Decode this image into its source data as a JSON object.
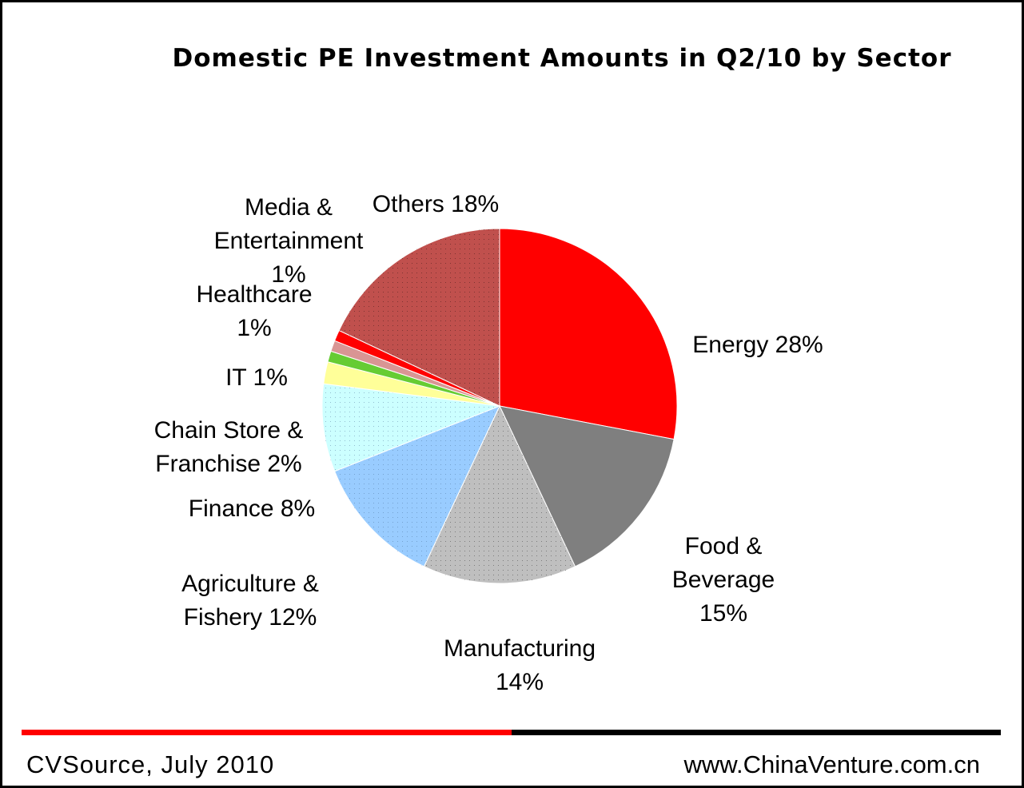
{
  "chart_data": {
    "type": "pie",
    "title": "Domestic PE Investment Amounts in Q2/10 by Sector",
    "slices": [
      {
        "name": "Energy",
        "value": 28,
        "label_lines": [
          "Energy 28%"
        ],
        "color": "#ff0000"
      },
      {
        "name": "Food & Beverage",
        "value": 15,
        "label_lines": [
          "Food &",
          "Beverage",
          "15%"
        ],
        "color": "#7f7f7f"
      },
      {
        "name": "Manufacturing",
        "value": 14,
        "label_lines": [
          "Manufacturing",
          "14%"
        ],
        "color": "#bfbfbf"
      },
      {
        "name": "Agriculture & Fishery",
        "value": 12,
        "label_lines": [
          "Agriculture &",
          "Fishery 12%"
        ],
        "color": "#99ccff"
      },
      {
        "name": "Finance",
        "value": 8,
        "label_lines": [
          "Finance 8%"
        ],
        "color": "#ccffff"
      },
      {
        "name": "Chain Store & Franchise",
        "value": 2,
        "label_lines": [
          "Chain Store &",
          "Franchise 2%"
        ],
        "color": "#ffff99"
      },
      {
        "name": "IT",
        "value": 1,
        "label_lines": [
          "IT 1%"
        ],
        "color": "#66cc33"
      },
      {
        "name": "Healthcare",
        "value": 1,
        "label_lines": [
          "Healthcare",
          "1%"
        ],
        "color": "#d99594"
      },
      {
        "name": "Media & Entertainment",
        "value": 1,
        "label_lines": [
          "Media &",
          "Entertainment",
          "1%"
        ],
        "color": "#ff0000"
      },
      {
        "name": "Others",
        "value": 18,
        "label_lines": [
          "Others 18%"
        ],
        "color": "#c0504d"
      }
    ],
    "start_angle": "12 o'clock",
    "direction": "clockwise",
    "legend": "none"
  },
  "footer": {
    "source": "CVSource, July 2010",
    "website": "www.ChinaVenture.com.cn"
  },
  "colors": {
    "rule_left": "#ff0000",
    "rule_right": "#000000"
  }
}
